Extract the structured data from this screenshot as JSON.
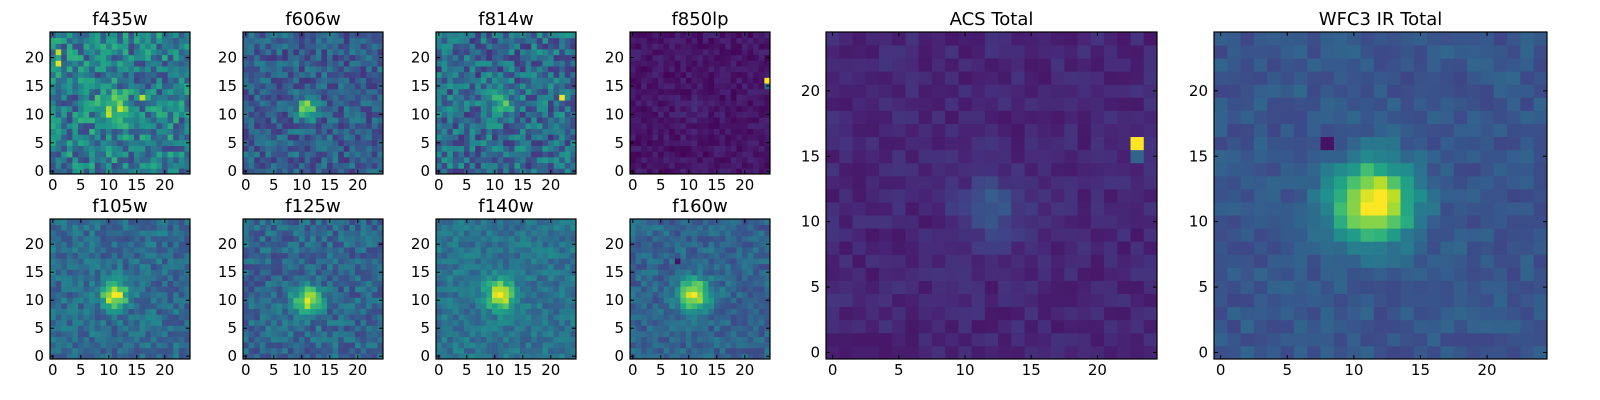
{
  "figure": {
    "type": "heatmap",
    "colormap": "viridis",
    "grid": false
  },
  "chart_data": [
    {
      "type": "heatmap",
      "title": "f435w",
      "size": 25,
      "xticks": [
        0,
        5,
        10,
        15,
        20
      ],
      "yticks": [
        0,
        5,
        10,
        15,
        20
      ],
      "xlim": [
        0,
        24
      ],
      "ylim": [
        0,
        24
      ],
      "source": {
        "cx": 11,
        "cy": 11,
        "amp": 0.35,
        "sigma": 2.0
      },
      "noise": 0.22,
      "base": 0.42,
      "hot": [
        [
          1,
          19,
          0.95
        ],
        [
          1,
          21,
          0.9
        ],
        [
          16,
          13,
          0.9
        ]
      ],
      "seed": 11
    },
    {
      "type": "heatmap",
      "title": "f606w",
      "size": 25,
      "xticks": [
        0,
        5,
        10,
        15,
        20
      ],
      "yticks": [
        0,
        5,
        10,
        15,
        20
      ],
      "xlim": [
        0,
        24
      ],
      "ylim": [
        0,
        24
      ],
      "source": {
        "cx": 11,
        "cy": 11,
        "amp": 0.55,
        "sigma": 1.3
      },
      "noise": 0.15,
      "base": 0.3,
      "hot": [],
      "seed": 23
    },
    {
      "type": "heatmap",
      "title": "f814w",
      "size": 25,
      "xticks": [
        0,
        5,
        10,
        15,
        20
      ],
      "yticks": [
        0,
        5,
        10,
        15,
        20
      ],
      "xlim": [
        0,
        24
      ],
      "ylim": [
        0,
        24
      ],
      "source": {
        "cx": 11,
        "cy": 12,
        "amp": 0.3,
        "sigma": 1.6
      },
      "noise": 0.2,
      "base": 0.35,
      "hot": [
        [
          22,
          13,
          0.98
        ]
      ],
      "seed": 37
    },
    {
      "type": "heatmap",
      "title": "f850lp",
      "size": 25,
      "xticks": [
        0,
        5,
        10,
        15,
        20
      ],
      "yticks": [
        0,
        5,
        10,
        15,
        20
      ],
      "xlim": [
        0,
        24
      ],
      "ylim": [
        0,
        24
      ],
      "source": {
        "cx": 11,
        "cy": 11,
        "amp": 0.04,
        "sigma": 2.0
      },
      "noise": 0.05,
      "base": 0.06,
      "hot": [
        [
          24,
          16,
          1.0
        ],
        [
          24,
          15,
          0.35
        ]
      ],
      "seed": 41
    },
    {
      "type": "heatmap",
      "title": "f105w",
      "size": 25,
      "xticks": [
        0,
        5,
        10,
        15,
        20
      ],
      "yticks": [
        0,
        5,
        10,
        15,
        20
      ],
      "xlim": [
        0,
        24
      ],
      "ylim": [
        0,
        24
      ],
      "source": {
        "cx": 11,
        "cy": 11,
        "amp": 0.65,
        "sigma": 1.6
      },
      "noise": 0.12,
      "base": 0.35,
      "hot": [],
      "seed": 53
    },
    {
      "type": "heatmap",
      "title": "f125w",
      "size": 25,
      "xticks": [
        0,
        5,
        10,
        15,
        20
      ],
      "yticks": [
        0,
        5,
        10,
        15,
        20
      ],
      "xlim": [
        0,
        24
      ],
      "ylim": [
        0,
        24
      ],
      "source": {
        "cx": 11,
        "cy": 10,
        "amp": 0.6,
        "sigma": 1.7
      },
      "noise": 0.13,
      "base": 0.33,
      "hot": [],
      "seed": 67
    },
    {
      "type": "heatmap",
      "title": "f140w",
      "size": 25,
      "xticks": [
        0,
        5,
        10,
        15,
        20
      ],
      "yticks": [
        0,
        5,
        10,
        15,
        20
      ],
      "xlim": [
        0,
        24
      ],
      "ylim": [
        0,
        24
      ],
      "source": {
        "cx": 11,
        "cy": 11,
        "amp": 0.6,
        "sigma": 1.8
      },
      "noise": 0.1,
      "base": 0.38,
      "hot": [],
      "seed": 71
    },
    {
      "type": "heatmap",
      "title": "f160w",
      "size": 25,
      "xticks": [
        0,
        5,
        10,
        15,
        20
      ],
      "yticks": [
        0,
        5,
        10,
        15,
        20
      ],
      "xlim": [
        0,
        24
      ],
      "ylim": [
        0,
        24
      ],
      "source": {
        "cx": 11,
        "cy": 11,
        "amp": 0.65,
        "sigma": 2.0
      },
      "noise": 0.1,
      "base": 0.32,
      "hot": [
        [
          8,
          17,
          0.05
        ]
      ],
      "seed": 83
    },
    {
      "type": "heatmap",
      "title": "ACS Total",
      "size": 25,
      "xticks": [
        0,
        5,
        10,
        15,
        20
      ],
      "yticks": [
        0,
        5,
        10,
        15,
        20
      ],
      "xlim": [
        0,
        24
      ],
      "ylim": [
        0,
        24
      ],
      "source": {
        "cx": 12,
        "cy": 11,
        "amp": 0.18,
        "sigma": 1.6
      },
      "noise": 0.045,
      "base": 0.11,
      "hot": [
        [
          23,
          16,
          1.0
        ],
        [
          23,
          15,
          0.32
        ]
      ],
      "seed": 97
    },
    {
      "type": "heatmap",
      "title": "WFC3 IR Total",
      "size": 25,
      "xticks": [
        0,
        5,
        10,
        15,
        20
      ],
      "yticks": [
        0,
        5,
        10,
        15,
        20
      ],
      "xlim": [
        0,
        24
      ],
      "ylim": [
        0,
        24
      ],
      "source": {
        "cx": 11.5,
        "cy": 11.5,
        "amp": 0.78,
        "sigma": 2.1
      },
      "noise": 0.06,
      "base": 0.27,
      "hot": [
        [
          8,
          16,
          0.05
        ]
      ],
      "seed": 101
    }
  ]
}
